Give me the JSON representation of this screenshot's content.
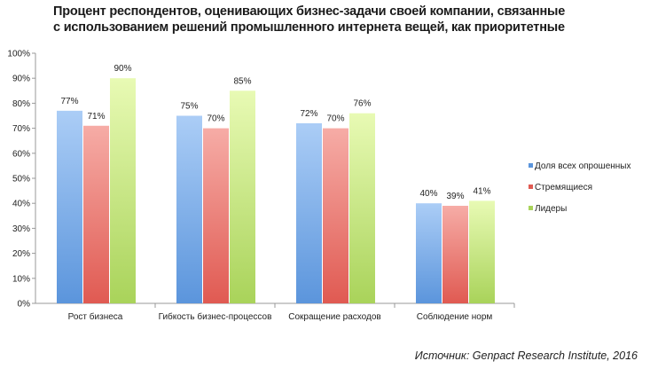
{
  "chart_data": {
    "type": "bar",
    "title_lines": [
      "Процент респондентов, оценивающих бизнес-задачи своей компании, связанные",
      "с использованием решений промышленного интернета вещей, как приоритетные"
    ],
    "categories": [
      "Рост бизнеса",
      "Гибкость бизнес-процессов",
      "Сокращение расходов",
      "Соблюдение норм"
    ],
    "series": [
      {
        "name": "Доля всех опрошенных",
        "values": [
          77,
          75,
          72,
          40
        ],
        "color": "#5b95dc",
        "color_light": "#abcdf6"
      },
      {
        "name": "Стремящиеся",
        "values": [
          71,
          70,
          70,
          39
        ],
        "color": "#e05a52",
        "color_light": "#f6aca6"
      },
      {
        "name": "Лидеры",
        "values": [
          90,
          85,
          76,
          41
        ],
        "color": "#a9d35a",
        "color_light": "#e8fab4"
      }
    ],
    "ylim": [
      0,
      100
    ],
    "yticks": [
      "0%",
      "10%",
      "20%",
      "30%",
      "40%",
      "50%",
      "60%",
      "70%",
      "80%",
      "90%",
      "100%"
    ],
    "value_suffix": "%",
    "legend_placement": "right",
    "grid": false
  },
  "source": "Источник: Genpact Research Institute, 2016"
}
